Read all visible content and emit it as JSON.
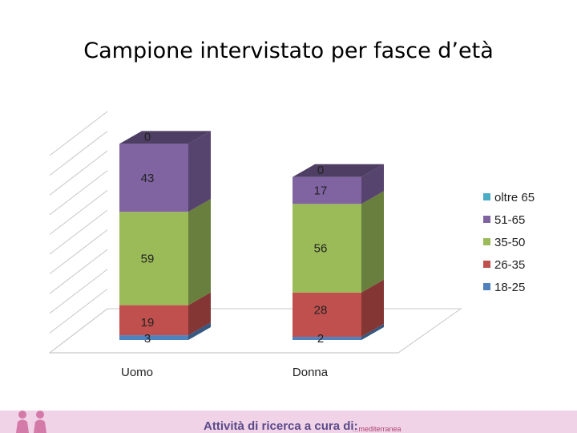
{
  "slide": {
    "title": "Campione intervistato per fasce d’età"
  },
  "footer": {
    "credit_text": "Attività di ricerca a cura di:",
    "logo_text": "...mediterranea"
  },
  "colors": {
    "18-25": "#4f81bd",
    "26-35": "#c0504d",
    "35-50": "#9bbb59",
    "51-65": "#8064a2",
    "oltre 65": "#4bacc6",
    "footer_band": "#f0d3e6"
  },
  "chart_data": {
    "type": "bar",
    "stacked": true,
    "three_d": true,
    "categories": [
      "Uomo",
      "Donna"
    ],
    "series": [
      {
        "name": "18-25",
        "values": [
          3,
          2
        ]
      },
      {
        "name": "26-35",
        "values": [
          19,
          28
        ]
      },
      {
        "name": "35-50",
        "values": [
          59,
          56
        ]
      },
      {
        "name": "51-65",
        "values": [
          43,
          17
        ]
      },
      {
        "name": "oltre 65",
        "values": [
          0,
          0
        ]
      }
    ],
    "legend": [
      "oltre 65",
      "51-65",
      "35-50",
      "26-35",
      "18-25"
    ],
    "legend_position": "right",
    "grid": true,
    "title": "",
    "xlabel": "",
    "ylabel": ""
  }
}
